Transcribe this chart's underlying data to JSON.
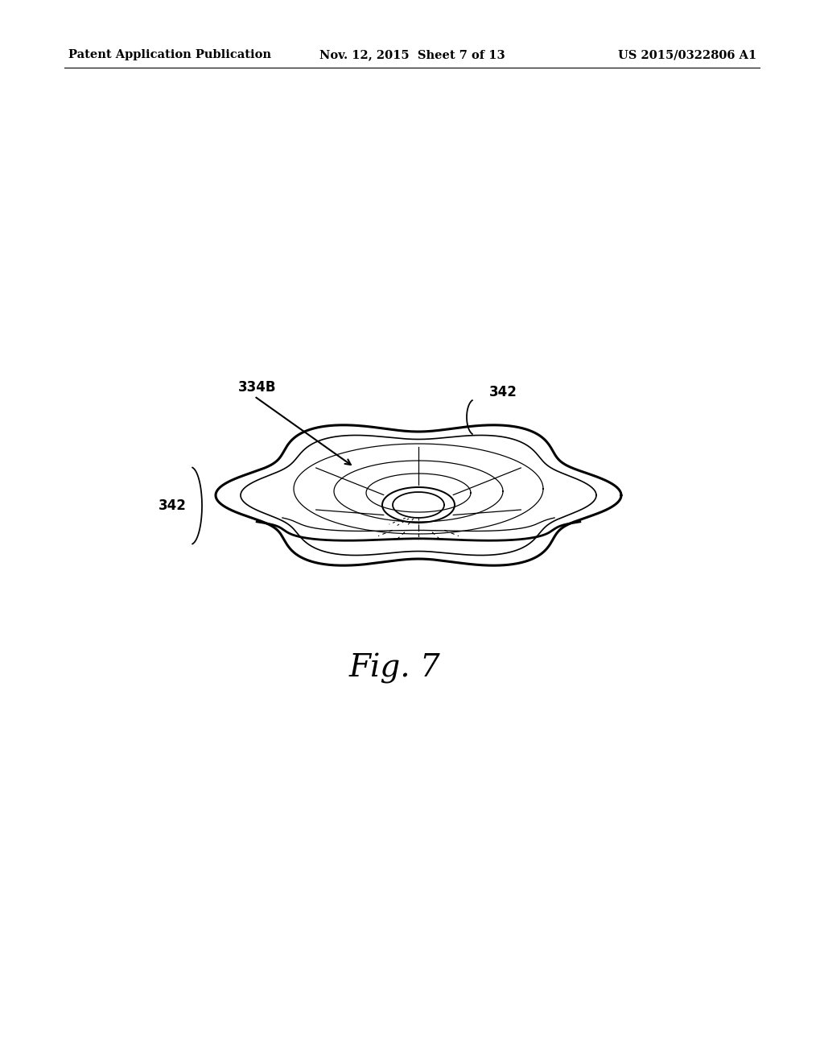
{
  "bg_color": "#ffffff",
  "header_left": "Patent Application Publication",
  "header_mid": "Nov. 12, 2015  Sheet 7 of 13",
  "header_right": "US 2015/0322806 A1",
  "header_fontsize": 10.5,
  "fig_label": "Fig. 7",
  "fig_label_fontsize": 28,
  "label_334B": "334B",
  "label_342": "342",
  "annotation_fontsize": 12,
  "line_color": "#000000",
  "line_width": 1.6
}
